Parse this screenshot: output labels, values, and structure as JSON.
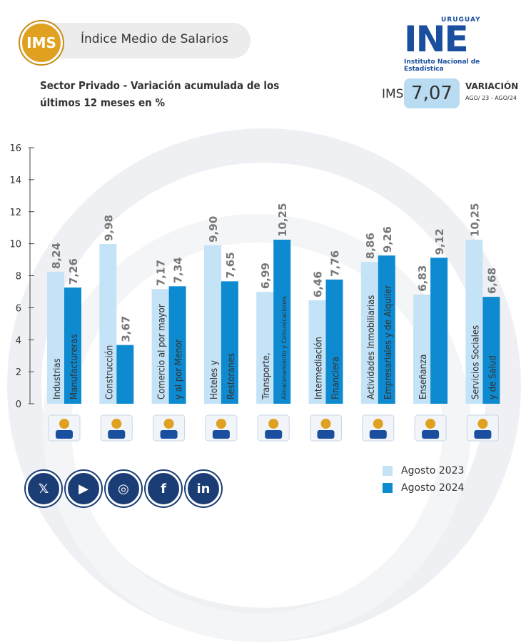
{
  "header": {
    "badge": "IMS",
    "title": "Índice Medio de Salarios",
    "subtitle_line1": "Sector Privado - Variación acumulada de los",
    "subtitle_line2": "últimos 12 meses en %"
  },
  "logo": {
    "country": "URUGUAY",
    "name": "INE",
    "full_name": "Instituto Nacional de Estadística"
  },
  "summary": {
    "label": "IMS",
    "value": "7,07",
    "variation_label": "VARIACIÓN",
    "period": "AGO/ 23 - AGO/24"
  },
  "colors": {
    "series_2023": "#c5e3f7",
    "series_2024": "#0e8ad0",
    "accent": "#e0a020",
    "brand": "#1a4fa0"
  },
  "chart_data": {
    "type": "bar",
    "ylim": [
      0,
      16
    ],
    "yticks": [
      0,
      2,
      4,
      6,
      8,
      10,
      12,
      14,
      16
    ],
    "grid": false,
    "legend_position": "bottom-right",
    "categories": [
      {
        "line1": "Industrias",
        "line2": "Manufactureras",
        "icon": "factory-worker-icon"
      },
      {
        "line1": "Construcción",
        "line2": "",
        "icon": "construction-worker-icon"
      },
      {
        "line1": "Comercio al por mayor",
        "line2": "y al por Menor",
        "icon": "market-stall-icon"
      },
      {
        "line1": "Hoteles y",
        "line2": "Restoranes",
        "icon": "restaurant-icon"
      },
      {
        "line1": "Transporte,",
        "line2": "Almacenamiento y Comunicaciones",
        "icon": "transport-icon"
      },
      {
        "line1": "Intermediación",
        "line2": "Financiera",
        "icon": "finance-icon"
      },
      {
        "line1": "Actividades Inmobiliarias",
        "line2": "Empresariales y de Alquiler",
        "icon": "house-keys-icon"
      },
      {
        "line1": "Enseñanza",
        "line2": "",
        "icon": "teacher-icon"
      },
      {
        "line1": "Servicios Sociales",
        "line2": "y de Salud",
        "icon": "hospital-icon"
      }
    ],
    "series": [
      {
        "name": "Agosto 2023",
        "values": [
          8.24,
          9.98,
          7.17,
          9.9,
          6.99,
          6.46,
          8.86,
          6.83,
          10.25
        ],
        "labels": [
          "8,24",
          "9,98",
          "7,17",
          "9,90",
          "6,99",
          "6,46",
          "8,86",
          "6,83",
          "10,25"
        ]
      },
      {
        "name": "Agosto 2024",
        "values": [
          7.26,
          3.67,
          7.34,
          7.65,
          10.25,
          7.76,
          9.26,
          9.12,
          6.68
        ],
        "labels": [
          "7,26",
          "3,67",
          "7,34",
          "7,65",
          "10,25",
          "7,76",
          "9,26",
          "9,12",
          "6,68"
        ]
      }
    ]
  },
  "social": [
    {
      "icon": "x-icon",
      "glyph": "𝕏"
    },
    {
      "icon": "youtube-icon",
      "glyph": "▶"
    },
    {
      "icon": "instagram-icon",
      "glyph": "◎"
    },
    {
      "icon": "facebook-icon",
      "glyph": "f"
    },
    {
      "icon": "linkedin-icon",
      "glyph": "in"
    }
  ]
}
